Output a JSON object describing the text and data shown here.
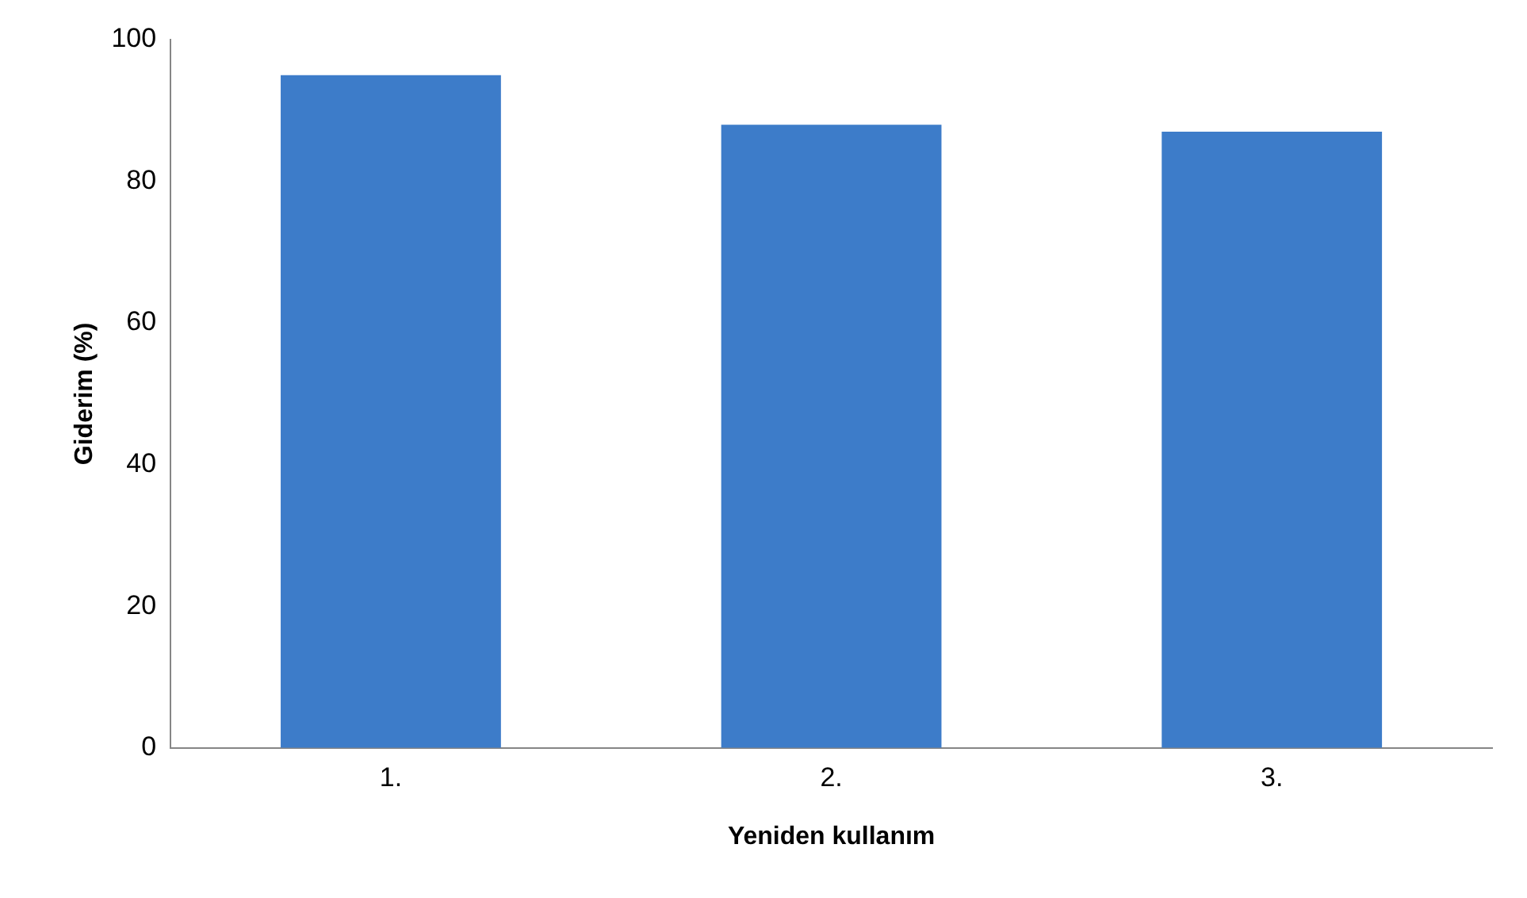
{
  "chart_data": {
    "type": "bar",
    "xlabel": "Yeniden kullanım",
    "ylabel": "Giderim (%)",
    "categories": [
      "1.",
      "2.",
      "3."
    ],
    "values": [
      95,
      88,
      87
    ],
    "color": "#3d7cc9",
    "ylim": [
      0,
      100
    ],
    "yticks": [
      0,
      20,
      40,
      60,
      80,
      100
    ],
    "grid": false,
    "legend": false
  }
}
